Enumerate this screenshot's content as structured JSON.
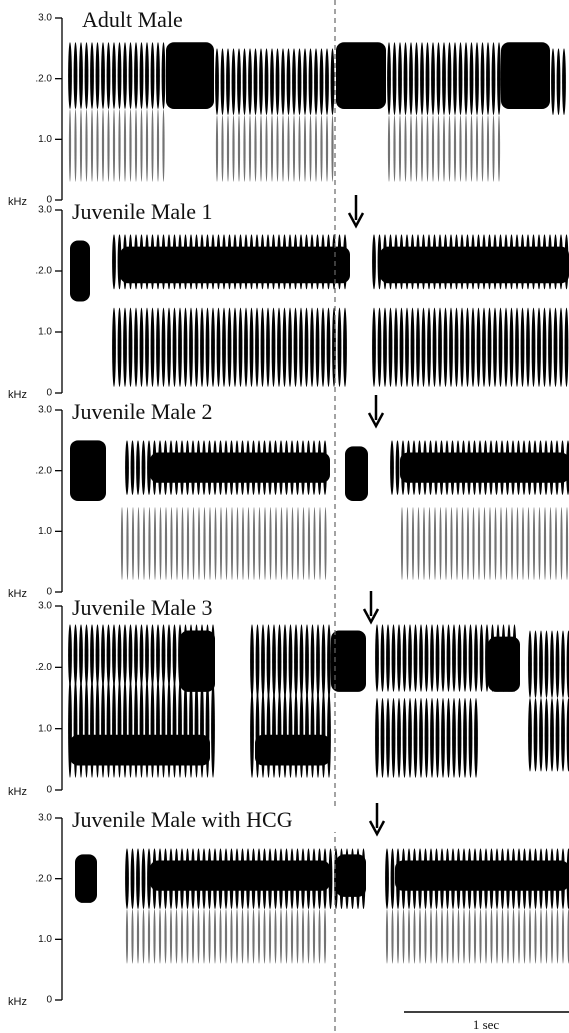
{
  "panels": [
    {
      "title": "Adult Male",
      "yticks": [
        "3.0",
        ".2.0",
        "1.0",
        "0"
      ],
      "unit": "kHz"
    },
    {
      "title": "Juvenile Male 1",
      "yticks": [
        "3.0",
        ".2.0",
        "1.0",
        "0"
      ],
      "unit": "kHz"
    },
    {
      "title": "Juvenile Male 2",
      "yticks": [
        "3.0",
        ".2.0",
        "1.0",
        "0"
      ],
      "unit": "kHz"
    },
    {
      "title": "Juvenile Male 3",
      "yticks": [
        "3.0",
        ".2.0",
        "1.0",
        "0"
      ],
      "unit": "kHz"
    },
    {
      "title": "Juvenile Male with HCG",
      "yticks": [
        "3.0",
        ".2.0",
        "1.0",
        "0"
      ],
      "unit": "kHz"
    }
  ],
  "scale_bar": {
    "label": "1 sec"
  }
}
